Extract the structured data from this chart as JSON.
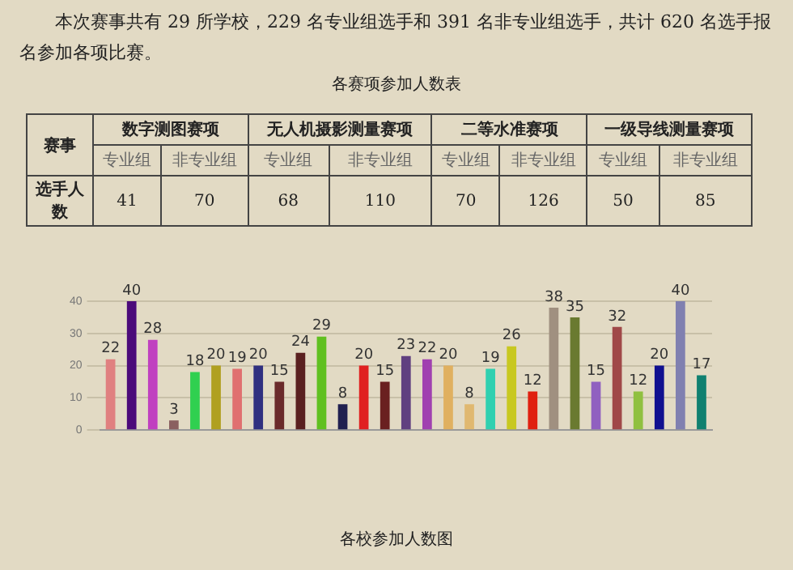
{
  "chart_data": [
    {
      "type": "other",
      "annotations": [
        "本次赛事共有 29 所学校，229 名专业组选手和 391 名非专业组选手，共计 620 名选手报名参加各项比赛。"
      ],
      "title": "各赛项参加人数表",
      "xlabel": "赛事",
      "ylabel": "选手人数",
      "categories": [
        "专业组",
        "非专业组"
      ],
      "data_labels": true,
      "series": [
        {
          "name": "数字测图赛项",
          "values": [
            41,
            70
          ]
        },
        {
          "name": "无人机摄影测量赛项",
          "values": [
            68,
            110
          ]
        },
        {
          "name": "二等水准赛项",
          "values": [
            70,
            126
          ]
        },
        {
          "name": "一级导线测量赛项",
          "values": [
            50,
            85
          ]
        }
      ]
    },
    {
      "type": "bar",
      "title": "各校参加人数图",
      "categories": [
        null,
        null,
        null,
        null,
        null,
        null,
        null,
        null,
        null,
        null,
        null,
        null,
        null,
        null,
        null,
        null,
        null,
        null,
        null,
        null,
        null,
        null,
        null,
        null,
        null,
        null,
        null,
        null,
        null
      ],
      "values": [
        22,
        40,
        28,
        3,
        18,
        20,
        19,
        20,
        15,
        24,
        29,
        8,
        20,
        15,
        23,
        22,
        20,
        8,
        19,
        26,
        12,
        38,
        35,
        15,
        32,
        12,
        20,
        40,
        17
      ],
      "colors": [
        "#e08080",
        "#4b0a7a",
        "#c040c0",
        "#8a6060",
        "#30d050",
        "#b0a020",
        "#e07070",
        "#303080",
        "#6a2a2a",
        "#5a2020",
        "#60c020",
        "#202050",
        "#e02020",
        "#6a2020",
        "#604080",
        "#a040b0",
        "#e0b060",
        "#e0b870",
        "#30d0b0",
        "#c8c820",
        "#e02010",
        "#a09080",
        "#6a7a30",
        "#9060c0",
        "#a04848",
        "#90c040",
        "#101090",
        "#8080b0",
        "#108070"
      ],
      "ylim": [
        0,
        40
      ],
      "yticks": [
        0,
        10,
        20,
        30,
        40
      ],
      "grid": "y",
      "data_labels": true,
      "legend": false
    }
  ]
}
